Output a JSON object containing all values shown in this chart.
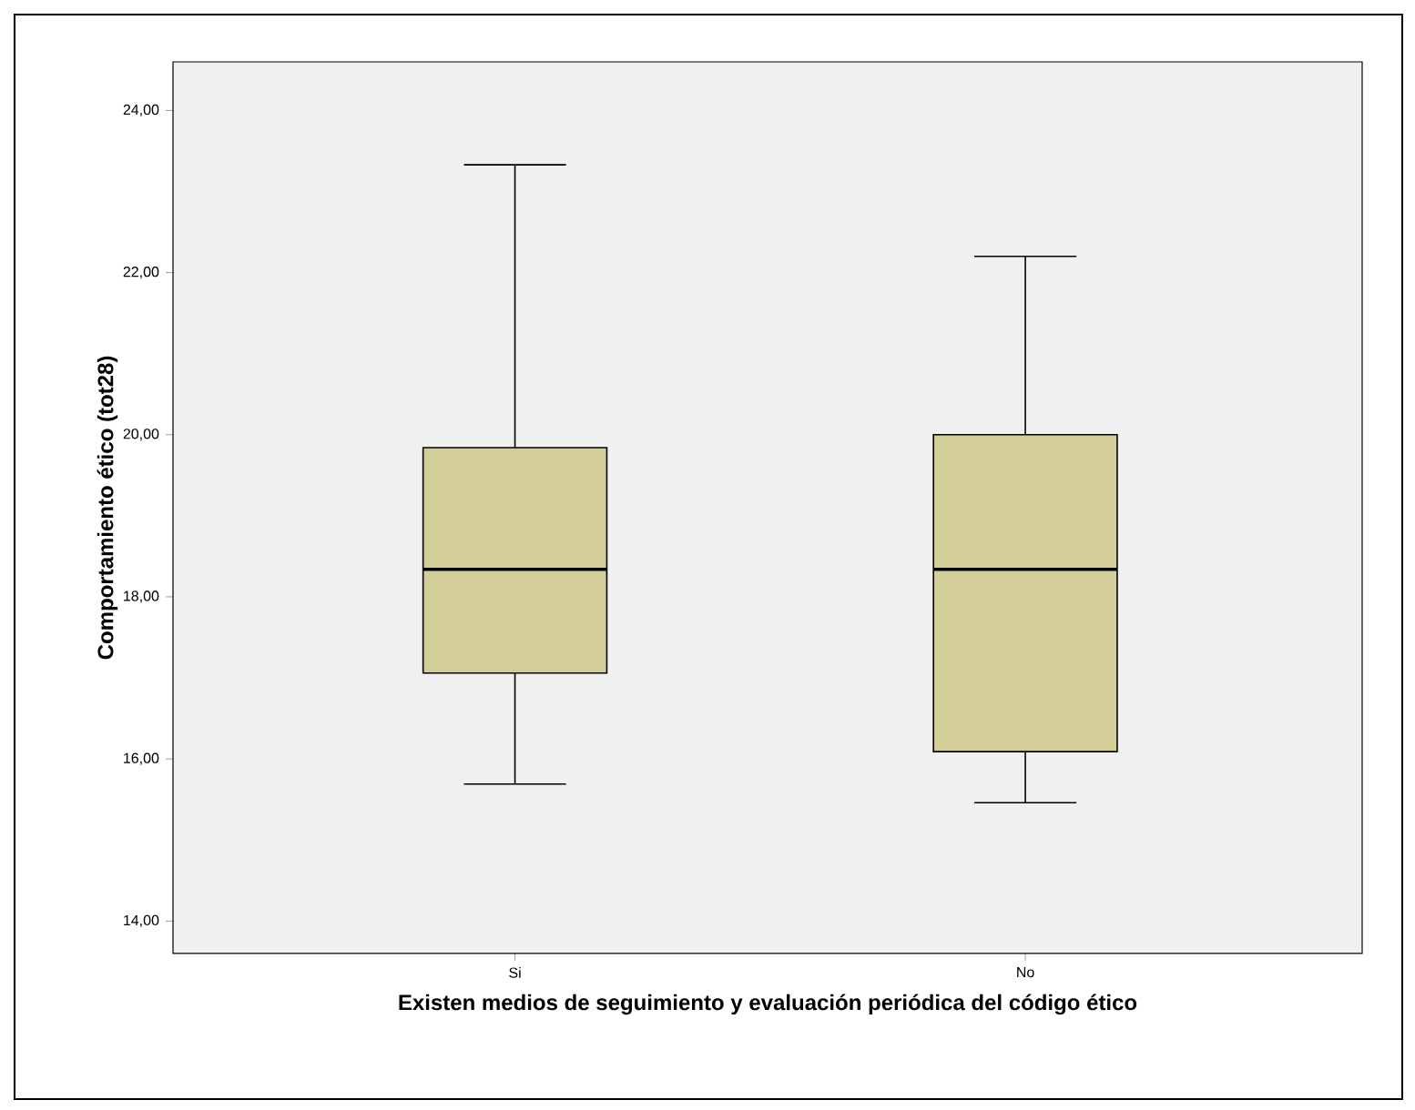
{
  "chart_data": {
    "type": "box",
    "xlabel": "Existen medios de seguimiento y evaluación periódica del código ético",
    "ylabel": "Comportamiento ético (tot28)",
    "categories": [
      "Si",
      "No"
    ],
    "color": "#d3ce97",
    "boxes": [
      {
        "low": 15.69,
        "q1": 17.06,
        "median": 18.34,
        "q3": 19.84,
        "high": 23.33
      },
      {
        "low": 15.46,
        "q1": 16.09,
        "median": 18.34,
        "q3": 20.0,
        "high": 22.2
      }
    ],
    "ylim": [
      13.6,
      24.6
    ],
    "yticks": [
      {
        "value": 14,
        "label": "14,00"
      },
      {
        "value": 16,
        "label": "16,00"
      },
      {
        "value": 18,
        "label": "18,00"
      },
      {
        "value": 20,
        "label": "20,00"
      },
      {
        "value": 22,
        "label": "22,00"
      },
      {
        "value": 24,
        "label": "24,00"
      }
    ]
  }
}
